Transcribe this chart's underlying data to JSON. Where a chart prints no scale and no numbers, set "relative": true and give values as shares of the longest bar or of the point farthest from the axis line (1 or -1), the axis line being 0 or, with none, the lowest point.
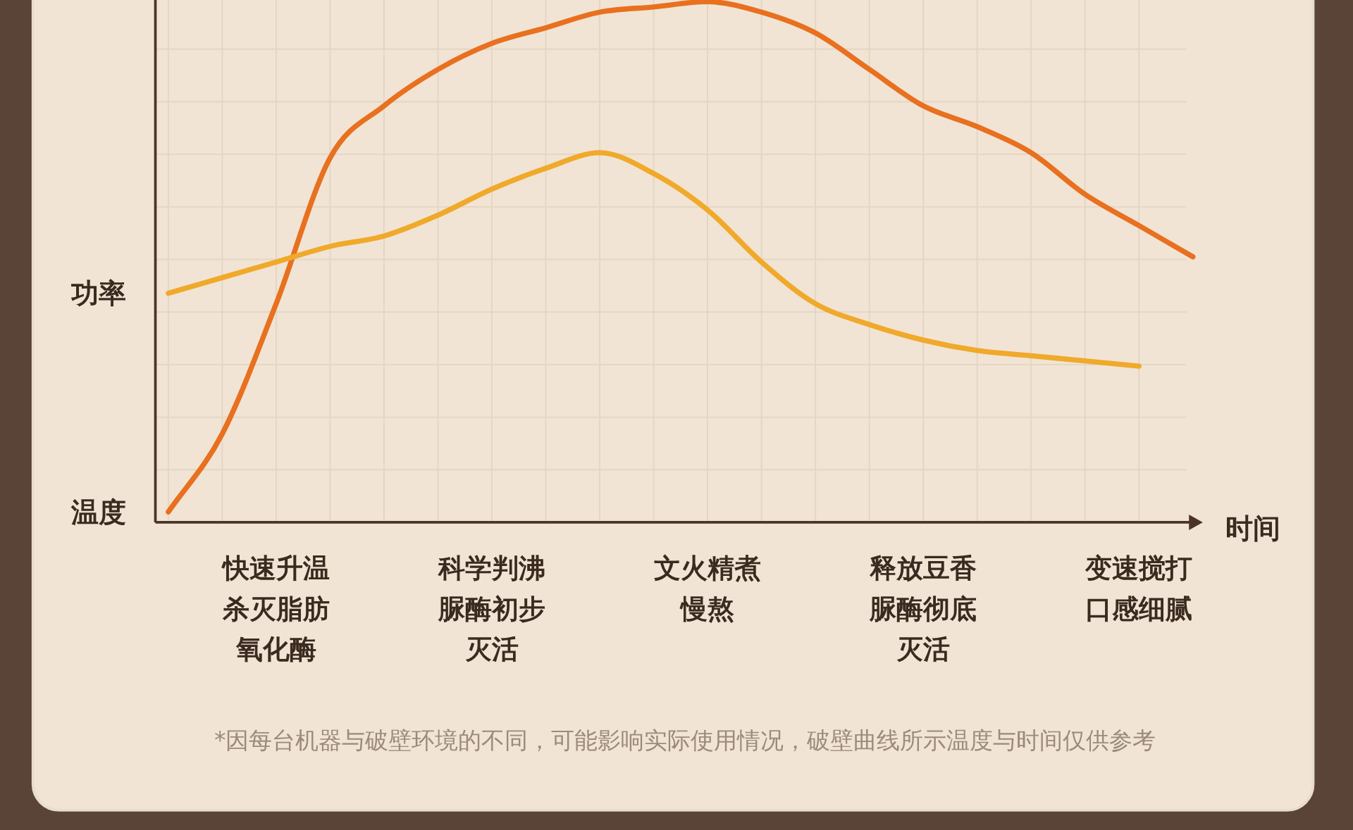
{
  "chart_data": {
    "type": "line",
    "relative": true,
    "grid": true,
    "xlabel": "时间",
    "categories": [
      null,
      null,
      "快速升温杀灭脂肪氧化酶",
      null,
      null,
      null,
      "科学判沸脲酶初步灭活",
      null,
      null,
      null,
      "文火精煮慢熬",
      null,
      null,
      null,
      "释放豆香脲酶彻底灭活",
      null,
      null,
      null,
      "变速搅打口感细腻",
      null
    ],
    "series": [
      {
        "name": "温度",
        "color": "#e8701f",
        "values": [
          0.02,
          0.17,
          0.42,
          0.7,
          0.8,
          0.87,
          0.92,
          0.95,
          0.98,
          0.99,
          1.0,
          0.98,
          0.94,
          0.87,
          0.8,
          0.76,
          0.71,
          0.63,
          0.57,
          0.51
        ]
      },
      {
        "name": "功率",
        "color": "#f0a92a",
        "values": [
          0.44,
          0.47,
          0.5,
          0.53,
          0.55,
          0.59,
          0.64,
          0.68,
          0.71,
          0.67,
          0.6,
          0.5,
          0.42,
          0.38,
          0.35,
          0.33,
          0.32,
          0.31,
          0.3,
          null
        ]
      }
    ],
    "annotations": [
      "*因每台机器与破壁环境的不同，可能影响实际使用情况，破壁曲线所示温度与时间仅供参考"
    ]
  }
}
